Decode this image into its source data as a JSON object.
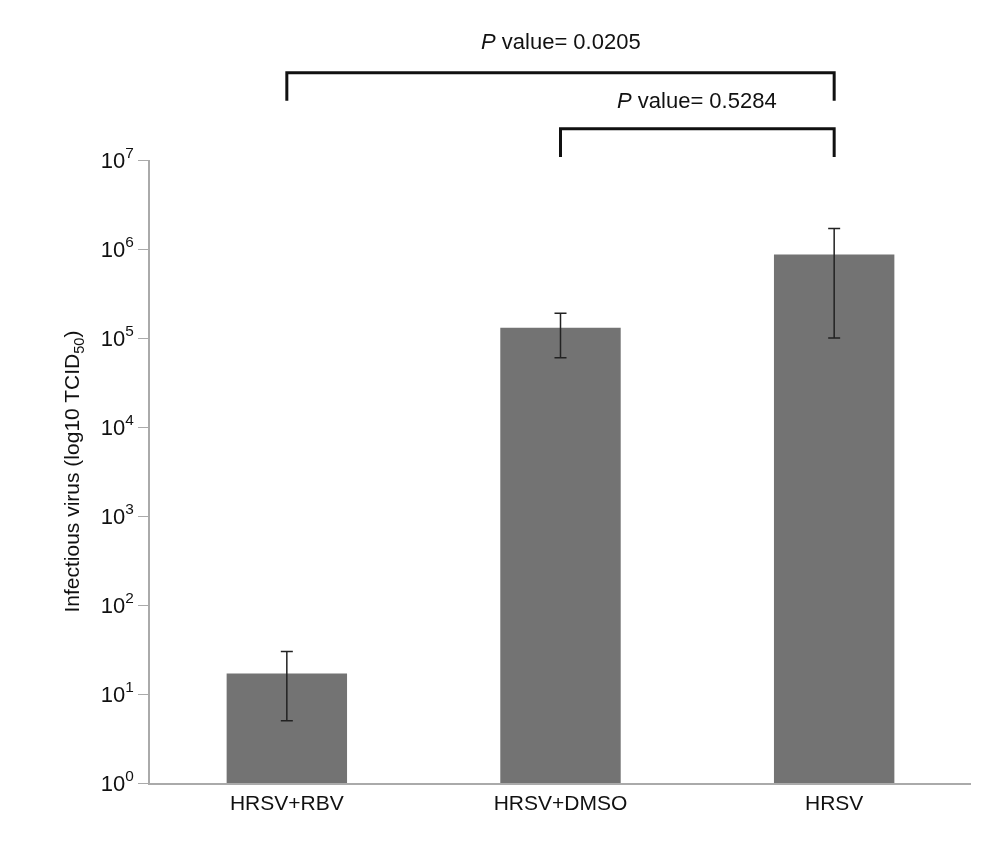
{
  "chart_data": {
    "type": "bar",
    "ylabel": "Infectious virus (log10 TCID$_{50}$)",
    "categories": [
      "HRSV+RBV",
      "HRSV+DMSO",
      "HRSV"
    ],
    "values": [
      17,
      130000,
      870000
    ],
    "color": "#737373",
    "errors": [
      [
        5,
        30
      ],
      [
        60000,
        190000
      ],
      [
        100000,
        1700000
      ]
    ],
    "log": true,
    "ylim": [
      1,
      10000000
    ],
    "yticks": [
      {
        "value": 1,
        "label": "10$^{0}$"
      },
      {
        "value": 10,
        "label": "10$^{1}$"
      },
      {
        "value": 100,
        "label": "10$^{2}$"
      },
      {
        "value": 1000,
        "label": "10$^{3}$"
      },
      {
        "value": 10000,
        "label": "10$^{4}$"
      },
      {
        "value": 100000,
        "label": "10$^{5}$"
      },
      {
        "value": 1000000,
        "label": "10$^{6}$"
      },
      {
        "value": 10000000,
        "label": "10$^{7}$"
      }
    ],
    "annotations": [
      "P value= 0.0205",
      "P value= 0.5284"
    ]
  }
}
